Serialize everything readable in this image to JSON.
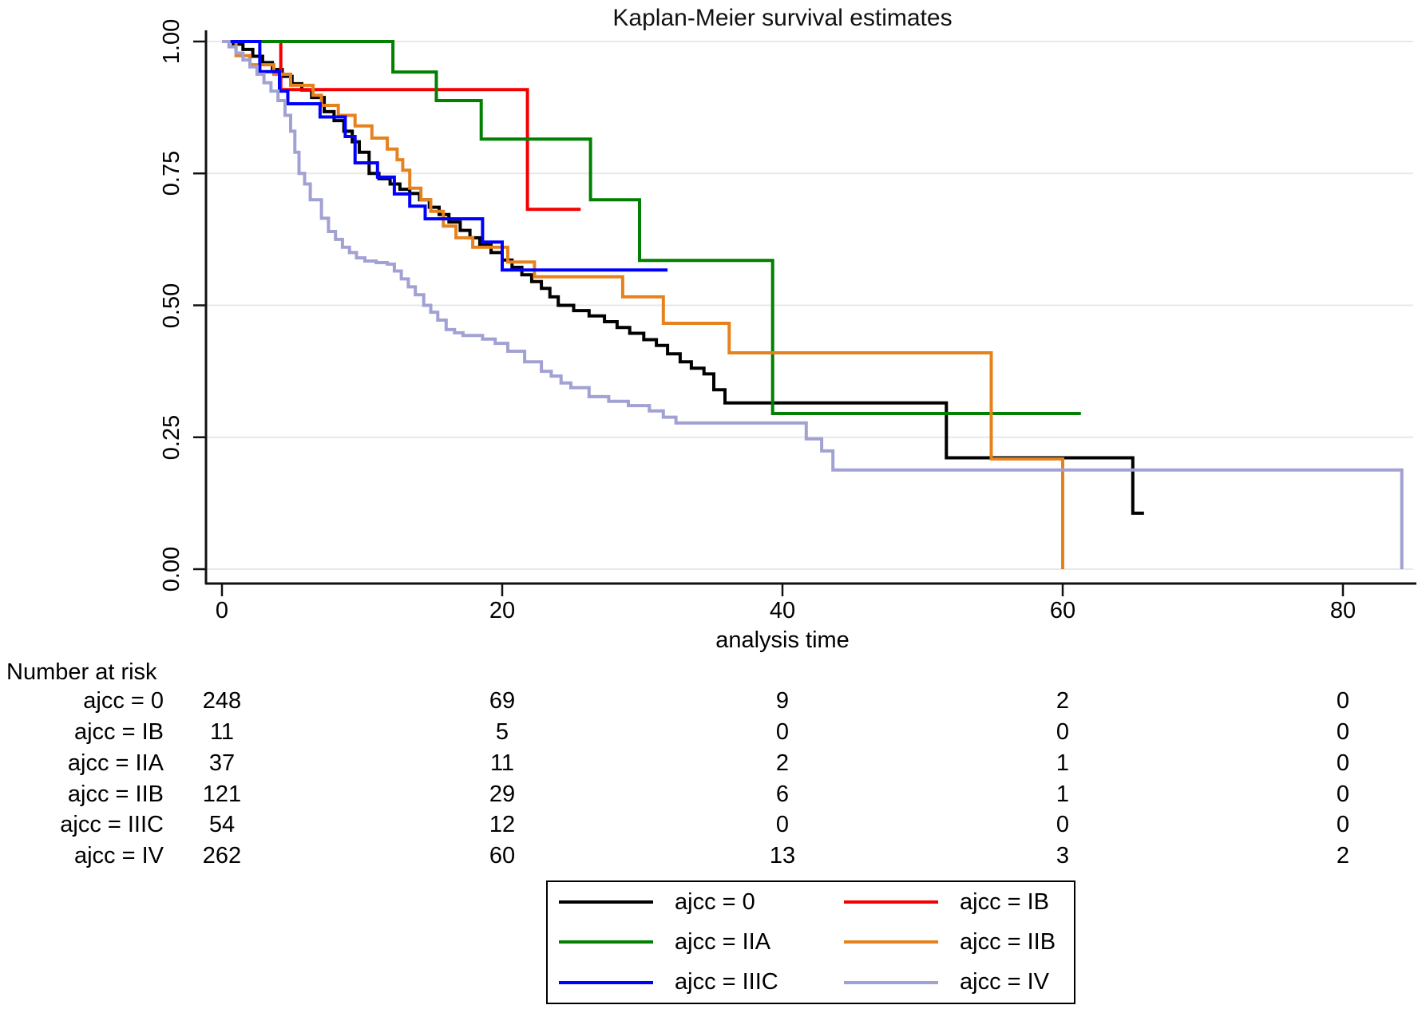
{
  "title": "Kaplan-Meier survival estimates",
  "xaxis": {
    "label": "analysis time"
  },
  "risk_table": {
    "heading": "Number at risk",
    "rows": [
      {
        "label": "ajcc = 0",
        "values": [
          "248",
          "69",
          "9",
          "2",
          "0"
        ]
      },
      {
        "label": "ajcc = IB",
        "values": [
          "11",
          "5",
          "0",
          "0",
          "0"
        ]
      },
      {
        "label": "ajcc = IIA",
        "values": [
          "37",
          "11",
          "2",
          "1",
          "0"
        ]
      },
      {
        "label": "ajcc = IIB",
        "values": [
          "121",
          "29",
          "6",
          "1",
          "0"
        ]
      },
      {
        "label": "ajcc = IIIC",
        "values": [
          "54",
          "12",
          "0",
          "0",
          "0"
        ]
      },
      {
        "label": "ajcc = IV",
        "values": [
          "262",
          "60",
          "13",
          "3",
          "2"
        ]
      }
    ]
  },
  "legend": {
    "items": [
      {
        "label": "ajcc = 0",
        "color": "#000000"
      },
      {
        "label": "ajcc = IB",
        "color": "#f40000"
      },
      {
        "label": "ajcc = IIA",
        "color": "#028002"
      },
      {
        "label": "ajcc = IIB",
        "color": "#e5821e"
      },
      {
        "label": "ajcc = IIIC",
        "color": "#0000fe"
      },
      {
        "label": "ajcc = IV",
        "color": "#a1a1d4"
      }
    ]
  },
  "chart_data": {
    "type": "line",
    "subtype": "kaplan-meier-step",
    "title": "Kaplan-Meier survival estimates",
    "xlabel": "analysis time",
    "ylabel": "",
    "xlim": [
      0,
      85.5
    ],
    "ylim": [
      0,
      1
    ],
    "grid": true,
    "x_ticks": [
      0,
      20,
      40,
      60,
      80
    ],
    "y_ticks": [
      {
        "label": "1.00",
        "value": 1.0
      },
      {
        "label": "0.75",
        "value": 0.75
      },
      {
        "label": "0.50",
        "value": 0.5
      },
      {
        "label": "0.25",
        "value": 0.25
      },
      {
        "label": "0.00",
        "value": 0.0
      }
    ],
    "series": [
      {
        "name": "ajcc = 0",
        "color": "#000000",
        "end_t": 65.8,
        "steps": [
          [
            0.8,
            0.995
          ],
          [
            1.5,
            0.985
          ],
          [
            2.2,
            0.972
          ],
          [
            2.9,
            0.96
          ],
          [
            3.6,
            0.947
          ],
          [
            4.3,
            0.934
          ],
          [
            5,
            0.92
          ],
          [
            5.7,
            0.908
          ],
          [
            6.4,
            0.894
          ],
          [
            7.3,
            0.867
          ],
          [
            8,
            0.85
          ],
          [
            8.7,
            0.83
          ],
          [
            9.3,
            0.81
          ],
          [
            9.8,
            0.79
          ],
          [
            10.5,
            0.75
          ],
          [
            11.2,
            0.74
          ],
          [
            12,
            0.73
          ],
          [
            12.7,
            0.72
          ],
          [
            13.4,
            0.712
          ],
          [
            14.1,
            0.7
          ],
          [
            14.8,
            0.686
          ],
          [
            15.5,
            0.672
          ],
          [
            16.2,
            0.658
          ],
          [
            17,
            0.642
          ],
          [
            17.7,
            0.628
          ],
          [
            18.4,
            0.615
          ],
          [
            19.2,
            0.6
          ],
          [
            20,
            0.586
          ],
          [
            20.7,
            0.572
          ],
          [
            21.4,
            0.558
          ],
          [
            22.1,
            0.545
          ],
          [
            22.8,
            0.532
          ],
          [
            23.4,
            0.516
          ],
          [
            24,
            0.5
          ],
          [
            25.1,
            0.49
          ],
          [
            26.2,
            0.48
          ],
          [
            27.3,
            0.469
          ],
          [
            28.2,
            0.458
          ],
          [
            29.1,
            0.447
          ],
          [
            30.1,
            0.435
          ],
          [
            31,
            0.424
          ],
          [
            31.8,
            0.408
          ],
          [
            32.7,
            0.393
          ],
          [
            33.5,
            0.381
          ],
          [
            34.4,
            0.37
          ],
          [
            35.1,
            0.34
          ],
          [
            35.9,
            0.315
          ],
          [
            51.7,
            0.211
          ],
          [
            65,
            0.106
          ]
        ]
      },
      {
        "name": "ajcc = IB",
        "color": "#f40000",
        "end_t": 25.6,
        "steps": [
          [
            4.2,
            0.909
          ],
          [
            21.8,
            0.682
          ]
        ]
      },
      {
        "name": "ajcc = IIA",
        "color": "#028002",
        "end_t": 61.3,
        "steps": [
          [
            12.2,
            0.942
          ],
          [
            15.3,
            0.888
          ],
          [
            18.5,
            0.815
          ],
          [
            26.3,
            0.7
          ],
          [
            29.8,
            0.585
          ],
          [
            39.3,
            0.295
          ]
        ]
      },
      {
        "name": "ajcc = IIB",
        "color": "#e5821e",
        "end_t": 60,
        "steps": [
          [
            1,
            0.973
          ],
          [
            2,
            0.956
          ],
          [
            3.7,
            0.938
          ],
          [
            4.9,
            0.917
          ],
          [
            6.5,
            0.898
          ],
          [
            7.1,
            0.879
          ],
          [
            8.3,
            0.86
          ],
          [
            9.5,
            0.84
          ],
          [
            10.7,
            0.817
          ],
          [
            11.8,
            0.796
          ],
          [
            12.5,
            0.776
          ],
          [
            12.9,
            0.756
          ],
          [
            13.4,
            0.722
          ],
          [
            14.2,
            0.7
          ],
          [
            14.9,
            0.678
          ],
          [
            15.8,
            0.65
          ],
          [
            16.7,
            0.628
          ],
          [
            17.9,
            0.61
          ],
          [
            20.4,
            0.582
          ],
          [
            22.3,
            0.554
          ],
          [
            28.6,
            0.516
          ],
          [
            31.5,
            0.466
          ],
          [
            36.2,
            0.41
          ],
          [
            54.9,
            0.209
          ],
          [
            60,
            0
          ]
        ]
      },
      {
        "name": "ajcc = IIIC",
        "color": "#0000fe",
        "end_t": 31.8,
        "steps": [
          [
            2.7,
            0.943
          ],
          [
            4.1,
            0.906
          ],
          [
            4.7,
            0.882
          ],
          [
            7,
            0.857
          ],
          [
            8.8,
            0.82
          ],
          [
            9.5,
            0.77
          ],
          [
            11.1,
            0.743
          ],
          [
            12.3,
            0.711
          ],
          [
            13.4,
            0.688
          ],
          [
            14.5,
            0.664
          ],
          [
            18.6,
            0.62
          ],
          [
            20,
            0.567
          ]
        ]
      },
      {
        "name": "ajcc = IV",
        "color": "#a1a1d4",
        "end_t": 84.2,
        "steps": [
          [
            0.5,
            0.99
          ],
          [
            1,
            0.978
          ],
          [
            1.5,
            0.965
          ],
          [
            2,
            0.952
          ],
          [
            2.5,
            0.938
          ],
          [
            3,
            0.922
          ],
          [
            3.5,
            0.906
          ],
          [
            4,
            0.888
          ],
          [
            4.5,
            0.86
          ],
          [
            4.9,
            0.83
          ],
          [
            5.2,
            0.79
          ],
          [
            5.5,
            0.75
          ],
          [
            5.9,
            0.73
          ],
          [
            6.3,
            0.7
          ],
          [
            7.1,
            0.665
          ],
          [
            7.6,
            0.64
          ],
          [
            8.1,
            0.625
          ],
          [
            8.6,
            0.61
          ],
          [
            9.1,
            0.6
          ],
          [
            9.6,
            0.59
          ],
          [
            10.2,
            0.584
          ],
          [
            11,
            0.581
          ],
          [
            11.8,
            0.578
          ],
          [
            12.3,
            0.565
          ],
          [
            12.8,
            0.55
          ],
          [
            13.3,
            0.535
          ],
          [
            13.8,
            0.52
          ],
          [
            14.4,
            0.5
          ],
          [
            14.9,
            0.487
          ],
          [
            15.4,
            0.472
          ],
          [
            16,
            0.454
          ],
          [
            16.6,
            0.448
          ],
          [
            17.2,
            0.443
          ],
          [
            18.6,
            0.436
          ],
          [
            19.5,
            0.428
          ],
          [
            20.4,
            0.413
          ],
          [
            21.6,
            0.393
          ],
          [
            22.8,
            0.375
          ],
          [
            23.5,
            0.366
          ],
          [
            24.2,
            0.353
          ],
          [
            24.9,
            0.344
          ],
          [
            26.2,
            0.327
          ],
          [
            27.6,
            0.318
          ],
          [
            29,
            0.31
          ],
          [
            30.5,
            0.3
          ],
          [
            31.5,
            0.288
          ],
          [
            32.4,
            0.277
          ],
          [
            41.7,
            0.247
          ],
          [
            42.8,
            0.224
          ],
          [
            43.6,
            0.188
          ],
          [
            84.2,
            0
          ]
        ]
      }
    ],
    "risk_table_note": "number at risk shown at x ticks; see risk_table"
  }
}
